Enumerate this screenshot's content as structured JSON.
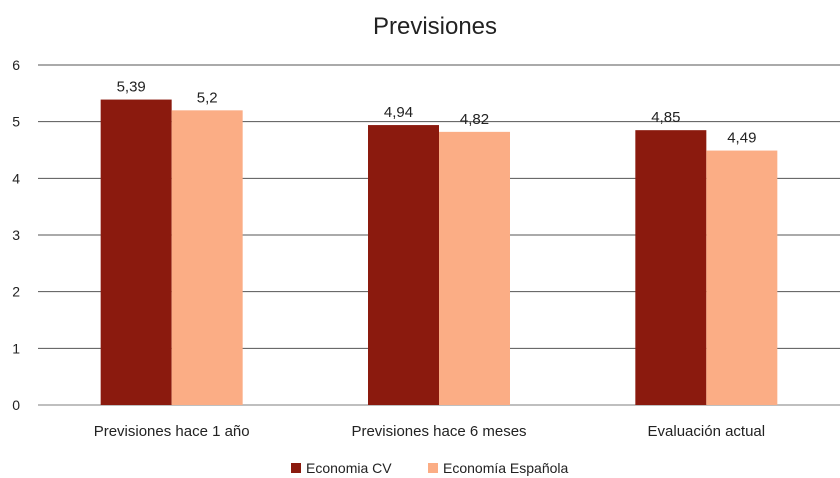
{
  "chart_data": {
    "type": "bar",
    "title": "Previsiones",
    "categories": [
      "Previsiones hace 1 año",
      "Previsiones hace 6 meses",
      "Evaluación actual"
    ],
    "series": [
      {
        "name": "Economia CV",
        "values": [
          5.39,
          4.94,
          4.85
        ],
        "labels": [
          "5,39",
          "4,94",
          "4,85"
        ],
        "color": "#8B1A0E"
      },
      {
        "name": "Economía Española",
        "values": [
          5.2,
          4.82,
          4.49
        ],
        "labels": [
          "5,2",
          "4,82",
          "4,49"
        ],
        "color": "#FBAD85"
      }
    ],
    "ylim": [
      0,
      6
    ],
    "yticks": [
      0,
      1,
      2,
      3,
      4,
      5,
      6
    ],
    "grid": true,
    "legend_position": "bottom"
  }
}
